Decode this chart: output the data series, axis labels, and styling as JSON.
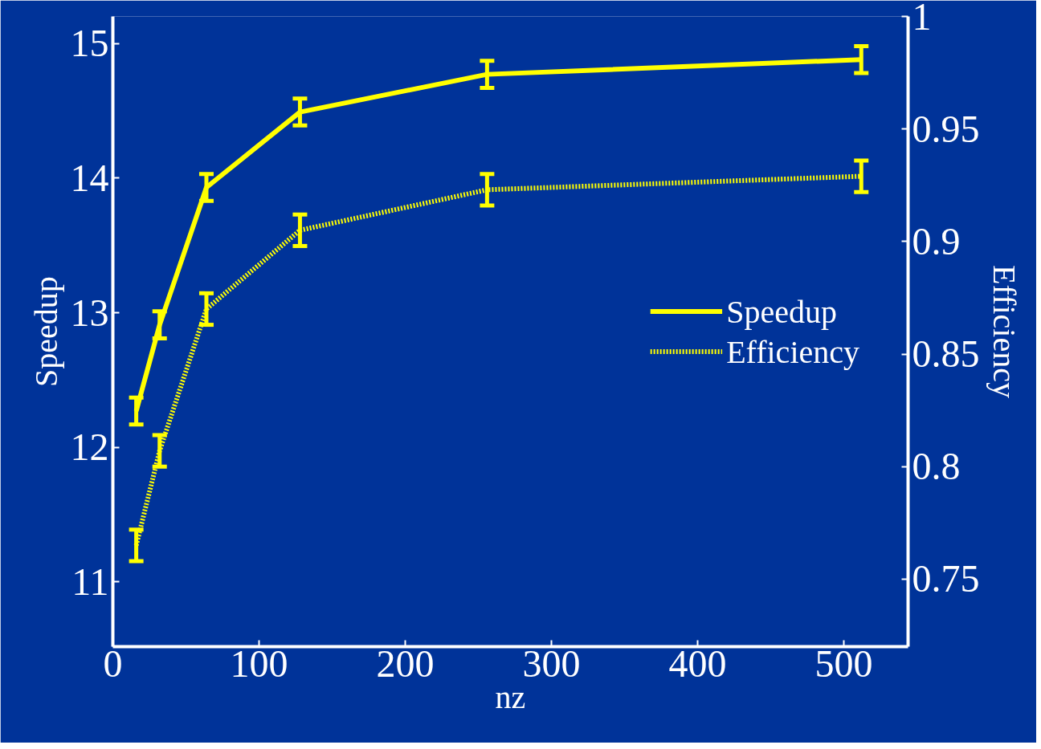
{
  "chart_data": {
    "type": "line",
    "xlabel": "nz",
    "ylabel": "Speedup",
    "y2label": "Efficiency",
    "x": [
      16,
      32,
      64,
      128,
      256,
      512
    ],
    "series": [
      {
        "name": "Speedup",
        "color": "#ffff00",
        "line_style": "solid",
        "values": [
          12.27,
          12.91,
          13.93,
          14.49,
          14.77,
          14.88
        ],
        "errors": [
          0.1,
          0.1,
          0.1,
          0.1,
          0.1,
          0.1
        ]
      },
      {
        "name": "Efficiency",
        "color": "#ffff00",
        "line_style": "dotted",
        "axis": "y2",
        "values": [
          0.765,
          0.807,
          0.87,
          0.905,
          0.923,
          0.929
        ],
        "errors": [
          0.007,
          0.007,
          0.007,
          0.007,
          0.007,
          0.007
        ]
      }
    ],
    "xlim": [
      0,
      544
    ],
    "xticks": [
      0,
      100,
      200,
      300,
      400,
      500
    ],
    "ylim": [
      10.52,
      15.2
    ],
    "yticks": [
      11,
      12,
      13,
      14,
      15
    ],
    "y2lim": [
      0.72,
      1.0
    ],
    "y2ticks": [
      0.75,
      0.8,
      0.85,
      0.9,
      0.95,
      1
    ],
    "legend": "right",
    "grid": false
  }
}
